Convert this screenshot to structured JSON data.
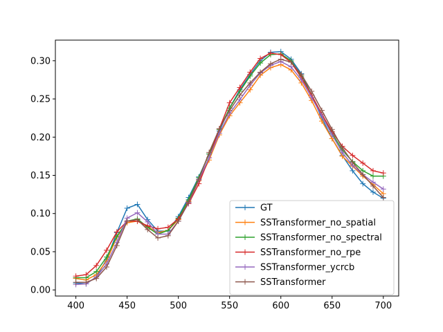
{
  "chart_data": {
    "type": "line",
    "title": "",
    "xlabel": "",
    "ylabel": "",
    "xlim": [
      380,
      715
    ],
    "ylim": [
      -0.008,
      0.327
    ],
    "xticks": [
      400,
      450,
      500,
      550,
      600,
      650,
      700
    ],
    "yticks": [
      0.0,
      0.05,
      0.1,
      0.15,
      0.2,
      0.25,
      0.3
    ],
    "grid": false,
    "legend_position": "lower-right",
    "marker": "+",
    "x": [
      400,
      410,
      420,
      430,
      440,
      450,
      460,
      470,
      480,
      490,
      500,
      510,
      520,
      530,
      540,
      550,
      560,
      570,
      580,
      590,
      600,
      610,
      620,
      630,
      640,
      650,
      660,
      670,
      680,
      690,
      700
    ],
    "series": [
      {
        "name": "GT",
        "color": "#1f77b4",
        "values": [
          0.009,
          0.008,
          0.017,
          0.04,
          0.075,
          0.107,
          0.112,
          0.092,
          0.077,
          0.077,
          0.096,
          0.121,
          0.148,
          0.178,
          0.208,
          0.238,
          0.262,
          0.282,
          0.3,
          0.311,
          0.312,
          0.302,
          0.283,
          0.255,
          0.225,
          0.198,
          0.176,
          0.156,
          0.139,
          0.128,
          0.12
        ]
      },
      {
        "name": "SSTransformer_no_spatial",
        "color": "#ff7f0e",
        "values": [
          0.015,
          0.013,
          0.02,
          0.038,
          0.069,
          0.088,
          0.09,
          0.083,
          0.075,
          0.078,
          0.092,
          0.116,
          0.143,
          0.17,
          0.203,
          0.228,
          0.245,
          0.262,
          0.281,
          0.291,
          0.295,
          0.288,
          0.271,
          0.248,
          0.221,
          0.198,
          0.175,
          0.162,
          0.149,
          0.138,
          0.126
        ]
      },
      {
        "name": "SSTransformer_no_spectral",
        "color": "#2ca02c",
        "values": [
          0.016,
          0.016,
          0.024,
          0.043,
          0.07,
          0.09,
          0.093,
          0.082,
          0.073,
          0.078,
          0.094,
          0.118,
          0.147,
          0.178,
          0.21,
          0.238,
          0.26,
          0.28,
          0.297,
          0.308,
          0.309,
          0.3,
          0.28,
          0.255,
          0.23,
          0.205,
          0.183,
          0.168,
          0.156,
          0.149,
          0.149
        ]
      },
      {
        "name": "SSTransformer_no_rpe",
        "color": "#d62728",
        "values": [
          0.018,
          0.02,
          0.032,
          0.052,
          0.076,
          0.09,
          0.09,
          0.084,
          0.08,
          0.082,
          0.093,
          0.113,
          0.139,
          0.173,
          0.211,
          0.245,
          0.265,
          0.285,
          0.303,
          0.31,
          0.308,
          0.298,
          0.278,
          0.255,
          0.23,
          0.207,
          0.188,
          0.176,
          0.166,
          0.156,
          0.153
        ]
      },
      {
        "name": "SSTransformer_ycrcb",
        "color": "#9467bd",
        "values": [
          0.007,
          0.008,
          0.017,
          0.034,
          0.062,
          0.094,
          0.101,
          0.089,
          0.073,
          0.073,
          0.09,
          0.114,
          0.144,
          0.173,
          0.205,
          0.231,
          0.249,
          0.268,
          0.284,
          0.294,
          0.299,
          0.292,
          0.275,
          0.252,
          0.228,
          0.203,
          0.18,
          0.163,
          0.151,
          0.141,
          0.132
        ]
      },
      {
        "name": "SSTransformer",
        "color": "#8c564b",
        "values": [
          0.01,
          0.01,
          0.015,
          0.03,
          0.058,
          0.09,
          0.092,
          0.079,
          0.068,
          0.071,
          0.09,
          0.115,
          0.145,
          0.18,
          0.211,
          0.235,
          0.255,
          0.271,
          0.285,
          0.296,
          0.302,
          0.298,
          0.282,
          0.26,
          0.235,
          0.21,
          0.186,
          0.167,
          0.151,
          0.136,
          0.121
        ]
      }
    ]
  }
}
